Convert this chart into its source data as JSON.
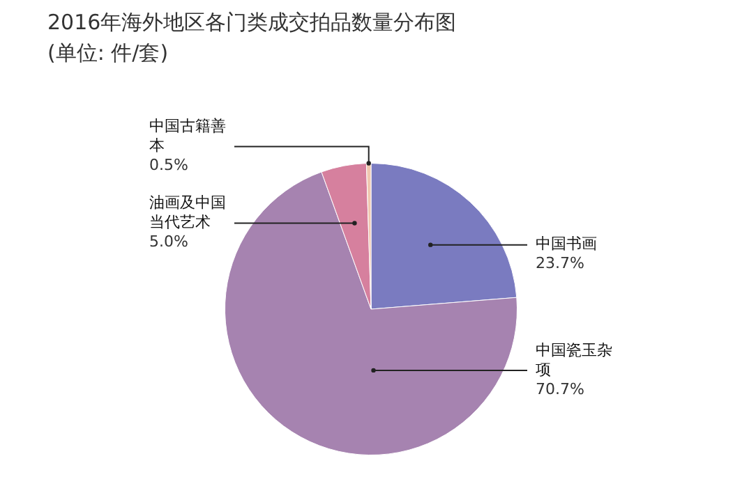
{
  "chart_data": {
    "type": "pie",
    "title": "2016年海外地区各门类成交拍品数量分布图",
    "subtitle": "(单位: 件/套)",
    "categories": [
      "中国书画",
      "中国瓷玉杂项",
      "油画及中国当代艺术",
      "中国古籍善本"
    ],
    "values": [
      23.7,
      70.7,
      5.0,
      0.5
    ],
    "colors": [
      "#7a7bc0",
      "#a683b0",
      "#d6809e",
      "#f0c8b0"
    ],
    "value_labels": [
      "23.7%",
      "70.7%",
      "5.0%",
      "0.5%"
    ],
    "legend": false
  }
}
